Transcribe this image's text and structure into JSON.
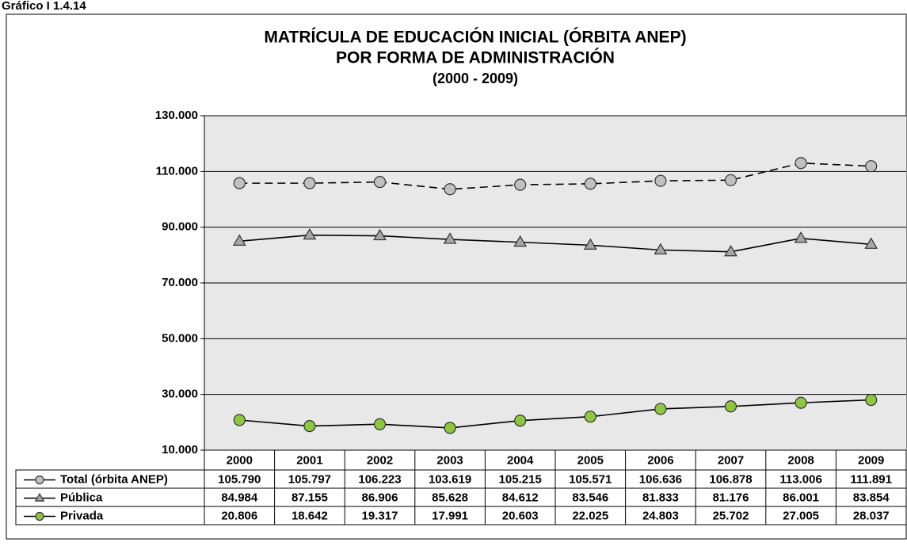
{
  "chart_data": {
    "type": "line",
    "label": "Gráfico I 1.4.14",
    "title": [
      "MATRÍCULA DE EDUCACIÓN INICIAL (ÓRBITA ANEP)",
      "POR FORMA DE ADMINISTRACIÓN",
      "(2000 - 2009)"
    ],
    "categories": [
      "2000",
      "2001",
      "2002",
      "2003",
      "2004",
      "2005",
      "2006",
      "2007",
      "2008",
      "2009"
    ],
    "series": [
      {
        "name": "Total (órbita ANEP)",
        "color": "#c0c0c0",
        "marker": "circle",
        "line_style": "dashed",
        "values": [
          105790,
          105797,
          106223,
          103619,
          105215,
          105571,
          106636,
          106878,
          113006,
          111891
        ],
        "value_labels": [
          "105.790",
          "105.797",
          "106.223",
          "103.619",
          "105.215",
          "105.571",
          "106.636",
          "106.878",
          "113.006",
          "111.891"
        ]
      },
      {
        "name": "Pública",
        "color": "#a6a6a6",
        "marker": "triangle",
        "line_style": "solid",
        "values": [
          84984,
          87155,
          86906,
          85628,
          84612,
          83546,
          81833,
          81176,
          86001,
          83854
        ],
        "value_labels": [
          "84.984",
          "87.155",
          "86.906",
          "85.628",
          "84.612",
          "83.546",
          "81.833",
          "81.176",
          "86.001",
          "83.854"
        ]
      },
      {
        "name": "Privada",
        "color": "#8dc63f",
        "marker": "circle",
        "line_style": "solid",
        "values": [
          20806,
          18642,
          19317,
          17991,
          20603,
          22025,
          24803,
          25702,
          27005,
          28037
        ],
        "value_labels": [
          "20.806",
          "18.642",
          "19.317",
          "17.991",
          "20.603",
          "22.025",
          "24.803",
          "25.702",
          "27.005",
          "28.037"
        ]
      }
    ],
    "ylim": [
      10000,
      130000
    ],
    "yticks": [
      {
        "value": 10000,
        "label": "10.000"
      },
      {
        "value": 30000,
        "label": "30.000"
      },
      {
        "value": 50000,
        "label": "50.000"
      },
      {
        "value": 70000,
        "label": "70.000"
      },
      {
        "value": 90000,
        "label": "90.000"
      },
      {
        "value": 110000,
        "label": "110.000"
      },
      {
        "value": 130000,
        "label": "130.000"
      }
    ],
    "grid": true
  }
}
